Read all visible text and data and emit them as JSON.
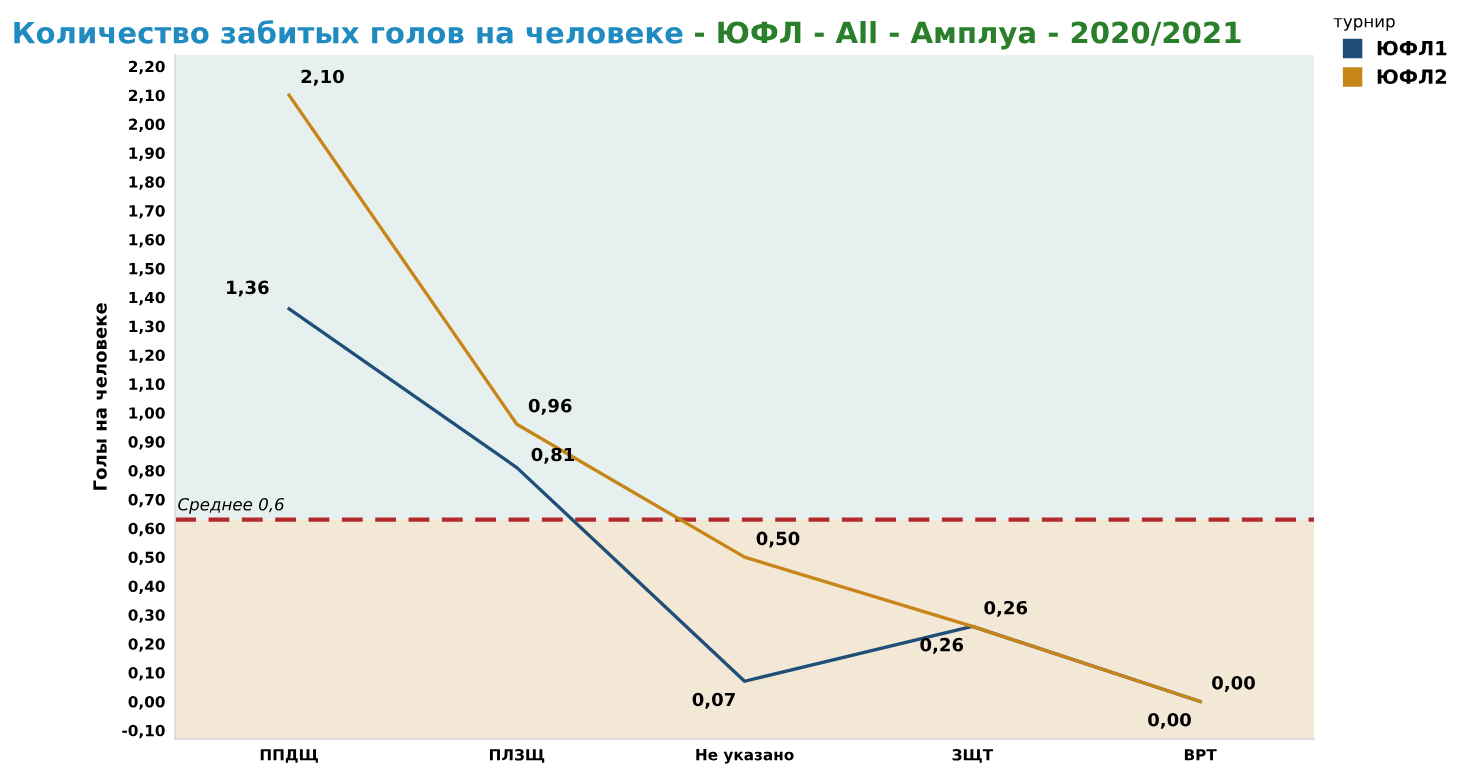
{
  "chart_data": {
    "type": "line",
    "title": "Количество забитых голов на человеке",
    "subtitle": "- ЮФЛ - All - Амплуа - 2020/2021",
    "ylabel": "Голы на человеке",
    "legend_title": "турнир",
    "legend": "top right",
    "categories": [
      "ППДЩ",
      "ПЛЗЩ",
      "Не указано",
      "ЗЩТ",
      "ВРТ"
    ],
    "series": [
      {
        "name": "ЮФЛ1",
        "color": "#1f4e79",
        "values": [
          1.36,
          0.81,
          0.07,
          0.26,
          0.0
        ],
        "value_labels": [
          "1,36",
          "0,81",
          "0,07",
          "0,26",
          "0,00"
        ]
      },
      {
        "name": "ЮФЛ2",
        "color": "#c8861a",
        "values": [
          2.1,
          0.96,
          0.5,
          0.26,
          0.0
        ],
        "value_labels": [
          "2,10",
          "0,96",
          "0,50",
          "0,26",
          "0,00"
        ]
      }
    ],
    "ylim": [
      -0.13,
      2.24
    ],
    "yticks": [
      {
        "value": -0.1,
        "label": "-0,10"
      },
      {
        "value": 0,
        "label": "0,00"
      },
      {
        "value": 0.1,
        "label": "0,10"
      },
      {
        "value": 0.2,
        "label": "0,20"
      },
      {
        "value": 0.3,
        "label": "0,30"
      },
      {
        "value": 0.4,
        "label": "0,40"
      },
      {
        "value": 0.5,
        "label": "0,50"
      },
      {
        "value": 0.6,
        "label": "0,60"
      },
      {
        "value": 0.7,
        "label": "0,70"
      },
      {
        "value": 0.8,
        "label": "0,80"
      },
      {
        "value": 0.9,
        "label": "0,90"
      },
      {
        "value": 1.0,
        "label": "1,00"
      },
      {
        "value": 1.1,
        "label": "1,10"
      },
      {
        "value": 1.2,
        "label": "1,20"
      },
      {
        "value": 1.3,
        "label": "1,30"
      },
      {
        "value": 1.4,
        "label": "1,40"
      },
      {
        "value": 1.5,
        "label": "1,50"
      },
      {
        "value": 1.6,
        "label": "1,60"
      },
      {
        "value": 1.7,
        "label": "1,70"
      },
      {
        "value": 1.8,
        "label": "1,80"
      },
      {
        "value": 1.9,
        "label": "1,90"
      },
      {
        "value": 2.0,
        "label": "2,00"
      },
      {
        "value": 2.1,
        "label": "2,10"
      },
      {
        "value": 2.2,
        "label": "2,20"
      }
    ],
    "ref_lines": [
      {
        "axis": "y",
        "value": 0.63,
        "label": "Среднее 0,6",
        "color": "#b22a2a",
        "line_style": "dashed"
      }
    ],
    "bands": [
      {
        "axis": "y",
        "from": -0.13,
        "to": 0.63,
        "color": "#f3e8d6"
      },
      {
        "axis": "y",
        "from": 0.63,
        "to": 2.24,
        "color": "#e6f1ef"
      }
    ],
    "grid": false,
    "marker": "none",
    "line_style": "solid"
  }
}
